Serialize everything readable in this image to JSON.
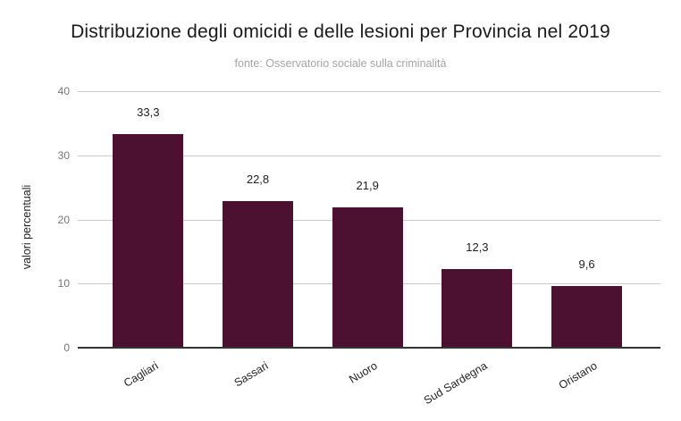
{
  "chart_data": {
    "type": "bar",
    "title": "Distribuzione degli omicidi e delle lesioni per Provincia nel 2019",
    "subtitle": "fonte: Osservatorio sociale sulla criminalità",
    "categories": [
      "Cagliari",
      "Sassari",
      "Nuoro",
      "Sud Sardegna",
      "Oristano"
    ],
    "values": [
      33.3,
      22.8,
      21.9,
      12.3,
      9.6
    ],
    "value_labels": [
      "33,3",
      "22,8",
      "21,9",
      "12,3",
      "9,6"
    ],
    "xlabel": "",
    "ylabel": "valori percentuali",
    "ylim": [
      0,
      40
    ],
    "yticks": [
      0,
      10,
      20,
      30,
      40
    ],
    "grid": true,
    "legend": "none",
    "colors": {
      "bar": "#4c1130",
      "title": "#1a1a1a",
      "subtitle": "#a5a5a5",
      "gridline": "#cccccc",
      "axis_line": "#333333",
      "tick_label": "#757575",
      "data_label": "#212121",
      "category_label": "#1f1f1f"
    }
  }
}
